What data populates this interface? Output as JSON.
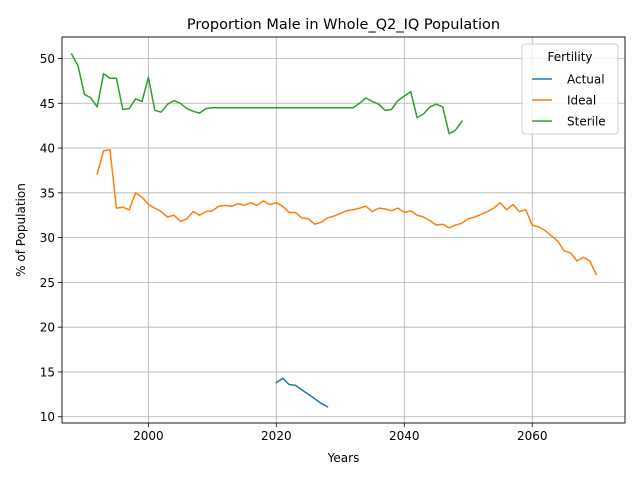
{
  "chart_data": {
    "type": "line",
    "title": "Proportion Male in Whole_Q2_IQ Population",
    "xlabel": "Years",
    "ylabel": "% of Population",
    "xlim": [
      1986.5,
      2074.5
    ],
    "ylim": [
      9.3,
      52.4
    ],
    "xticks": [
      2000,
      2020,
      2040,
      2060
    ],
    "yticks": [
      10,
      15,
      20,
      25,
      30,
      35,
      40,
      45,
      50
    ],
    "grid": true,
    "legend": {
      "title": "Fertility",
      "placement": "top-right"
    },
    "series": [
      {
        "name": "Actual",
        "color": "#1f77b4",
        "x": [
          2020,
          2021,
          2022,
          2023,
          2024,
          2025,
          2026,
          2027,
          2028
        ],
        "y": [
          13.8,
          14.3,
          13.6,
          13.5,
          13.0,
          12.5,
          12.0,
          11.5,
          11.1
        ]
      },
      {
        "name": "Ideal",
        "color": "#ff7f0e",
        "x": [
          1992,
          1993,
          1994,
          1995,
          1996,
          1997,
          1998,
          1999,
          2000,
          2001,
          2002,
          2003,
          2004,
          2005,
          2006,
          2007,
          2008,
          2009,
          2010,
          2011,
          2012,
          2013,
          2014,
          2015,
          2016,
          2017,
          2018,
          2019,
          2020,
          2021,
          2022,
          2023,
          2024,
          2025,
          2026,
          2027,
          2028,
          2029,
          2030,
          2031,
          2032,
          2033,
          2034,
          2035,
          2036,
          2037,
          2038,
          2039,
          2040,
          2041,
          2042,
          2043,
          2044,
          2045,
          2046,
          2047,
          2048,
          2049,
          2050,
          2051,
          2052,
          2053,
          2054,
          2055,
          2056,
          2057,
          2058,
          2059,
          2060,
          2061,
          2062,
          2063,
          2064,
          2065,
          2066,
          2067,
          2068,
          2069,
          2070
        ],
        "y": [
          37.1,
          39.7,
          39.8,
          33.3,
          33.4,
          33.1,
          35.0,
          34.5,
          33.7,
          33.3,
          32.9,
          32.3,
          32.5,
          31.8,
          32.1,
          32.9,
          32.5,
          32.9,
          33.0,
          33.5,
          33.6,
          33.5,
          33.8,
          33.6,
          33.9,
          33.6,
          34.1,
          33.7,
          33.9,
          33.5,
          32.8,
          32.8,
          32.2,
          32.1,
          31.5,
          31.7,
          32.2,
          32.4,
          32.7,
          33.0,
          33.1,
          33.3,
          33.5,
          32.9,
          33.3,
          33.2,
          33.0,
          33.3,
          32.8,
          33.0,
          32.5,
          32.3,
          31.9,
          31.4,
          31.5,
          31.1,
          31.4,
          31.6,
          32.1,
          32.3,
          32.6,
          32.9,
          33.3,
          33.9,
          33.1,
          33.7,
          32.9,
          33.1,
          31.4,
          31.2,
          30.8,
          30.2,
          29.6,
          28.5,
          28.3,
          27.4,
          27.8,
          27.4,
          25.9
        ]
      },
      {
        "name": "Sterile",
        "color": "#2ca02c",
        "x": [
          1988,
          1989,
          1990,
          1991,
          1992,
          1993,
          1994,
          1995,
          1996,
          1997,
          1998,
          1999,
          2000,
          2001,
          2002,
          2003,
          2004,
          2005,
          2006,
          2007,
          2008,
          2009,
          2010,
          2011,
          2012,
          2013,
          2014,
          2015,
          2016,
          2017,
          2018,
          2019,
          2020,
          2021,
          2022,
          2023,
          2024,
          2025,
          2026,
          2027,
          2028,
          2029,
          2030,
          2031,
          2032,
          2033,
          2034,
          2035,
          2036,
          2037,
          2038,
          2039,
          2040,
          2041,
          2042,
          2043,
          2044,
          2045,
          2046,
          2047,
          2048,
          2049
        ],
        "y": [
          50.5,
          49.2,
          46.0,
          45.6,
          44.6,
          48.3,
          47.8,
          47.8,
          44.3,
          44.4,
          45.5,
          45.2,
          47.9,
          44.2,
          44.0,
          44.9,
          45.3,
          45.0,
          44.4,
          44.1,
          43.9,
          44.4,
          44.5,
          44.5,
          44.5,
          44.5,
          44.5,
          44.5,
          44.5,
          44.5,
          44.5,
          44.5,
          44.5,
          44.5,
          44.5,
          44.5,
          44.5,
          44.5,
          44.5,
          44.5,
          44.5,
          44.5,
          44.5,
          44.5,
          44.5,
          45.0,
          45.6,
          45.2,
          44.9,
          44.2,
          44.3,
          45.3,
          45.8,
          46.3,
          43.4,
          43.8,
          44.6,
          44.9,
          44.6,
          41.6,
          42.0,
          43.0
        ]
      }
    ]
  }
}
